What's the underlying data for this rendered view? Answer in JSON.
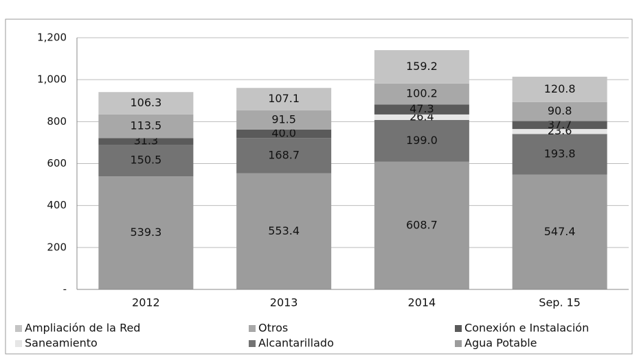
{
  "chart_data": {
    "type": "stacked_bar",
    "categories": [
      "2012",
      "2013",
      "2014",
      "Sep. 15"
    ],
    "series": [
      {
        "name": "Agua Potable",
        "color": "#9c9c9c",
        "values": [
          539.3,
          553.4,
          608.7,
          547.4
        ],
        "value_labels": [
          "539.3",
          "553.4",
          "608.7",
          "547.4"
        ]
      },
      {
        "name": "Alcantarillado",
        "color": "#737373",
        "values": [
          150.5,
          168.7,
          199.0,
          193.8
        ],
        "value_labels": [
          "150.5",
          "168.7",
          "199.0",
          "193.8"
        ]
      },
      {
        "name": "Saneamiento",
        "color": "#e6e6e6",
        "values": [
          null,
          null,
          26.4,
          23.6
        ],
        "value_labels": [
          null,
          null,
          "26.4",
          "23.6"
        ]
      },
      {
        "name": "Conexión e Instalación",
        "color": "#5a5a5a",
        "values": [
          31.3,
          40.0,
          47.3,
          37.7
        ],
        "value_labels": [
          "31.3",
          "40.0",
          "47.3",
          "37.7"
        ]
      },
      {
        "name": "Otros",
        "color": "#a8a8a8",
        "values": [
          113.5,
          91.5,
          100.2,
          90.8
        ],
        "value_labels": [
          "113.5",
          "91.5",
          "100.2",
          "90.8"
        ]
      },
      {
        "name": "Ampliación de la Red",
        "color": "#c4c4c4",
        "values": [
          106.3,
          107.1,
          159.2,
          120.8
        ],
        "value_labels": [
          "106.3",
          "107.1",
          "159.2",
          "120.8"
        ]
      }
    ],
    "ylim": [
      0,
      1200
    ],
    "yticks": [
      {
        "value": 0,
        "label": "-"
      },
      200,
      400,
      600,
      800,
      {
        "value": 1000,
        "label": "1,000"
      },
      {
        "value": 1200,
        "label": "1,200"
      }
    ],
    "grid": true
  }
}
